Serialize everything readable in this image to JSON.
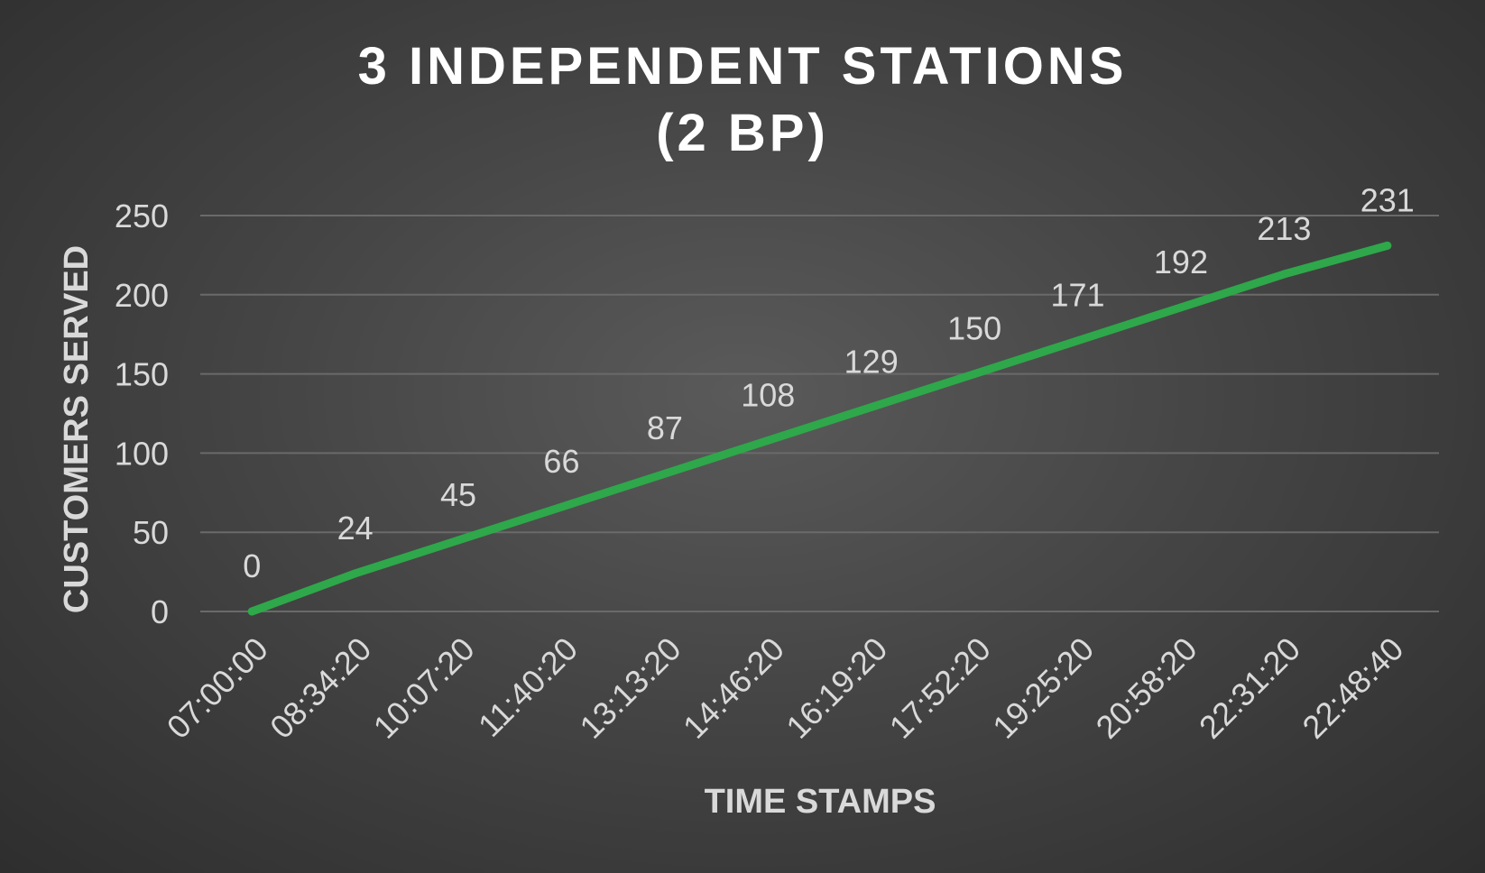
{
  "chart_data": {
    "type": "line",
    "title_lines": [
      "3 INDEPENDENT STATIONS",
      "(2 BP)"
    ],
    "xlabel": "TIME STAMPS",
    "ylabel": "CUSTOMERS SERVED",
    "categories": [
      "07:00:00",
      "08:34:20",
      "10:07:20",
      "11:40:20",
      "13:13:20",
      "14:46:20",
      "16:19:20",
      "17:52:20",
      "19:25:20",
      "20:58:20",
      "22:31:20",
      "22:48:40"
    ],
    "series": [
      {
        "values": [
          0,
          24,
          45,
          66,
          87,
          108,
          129,
          150,
          171,
          192,
          213,
          231
        ],
        "color": "#2ea84a"
      }
    ],
    "ylim": [
      0,
      250
    ],
    "yticks": [
      0,
      50,
      100,
      150,
      200,
      250
    ],
    "grid": true,
    "legend": "none",
    "data_labels": true
  }
}
